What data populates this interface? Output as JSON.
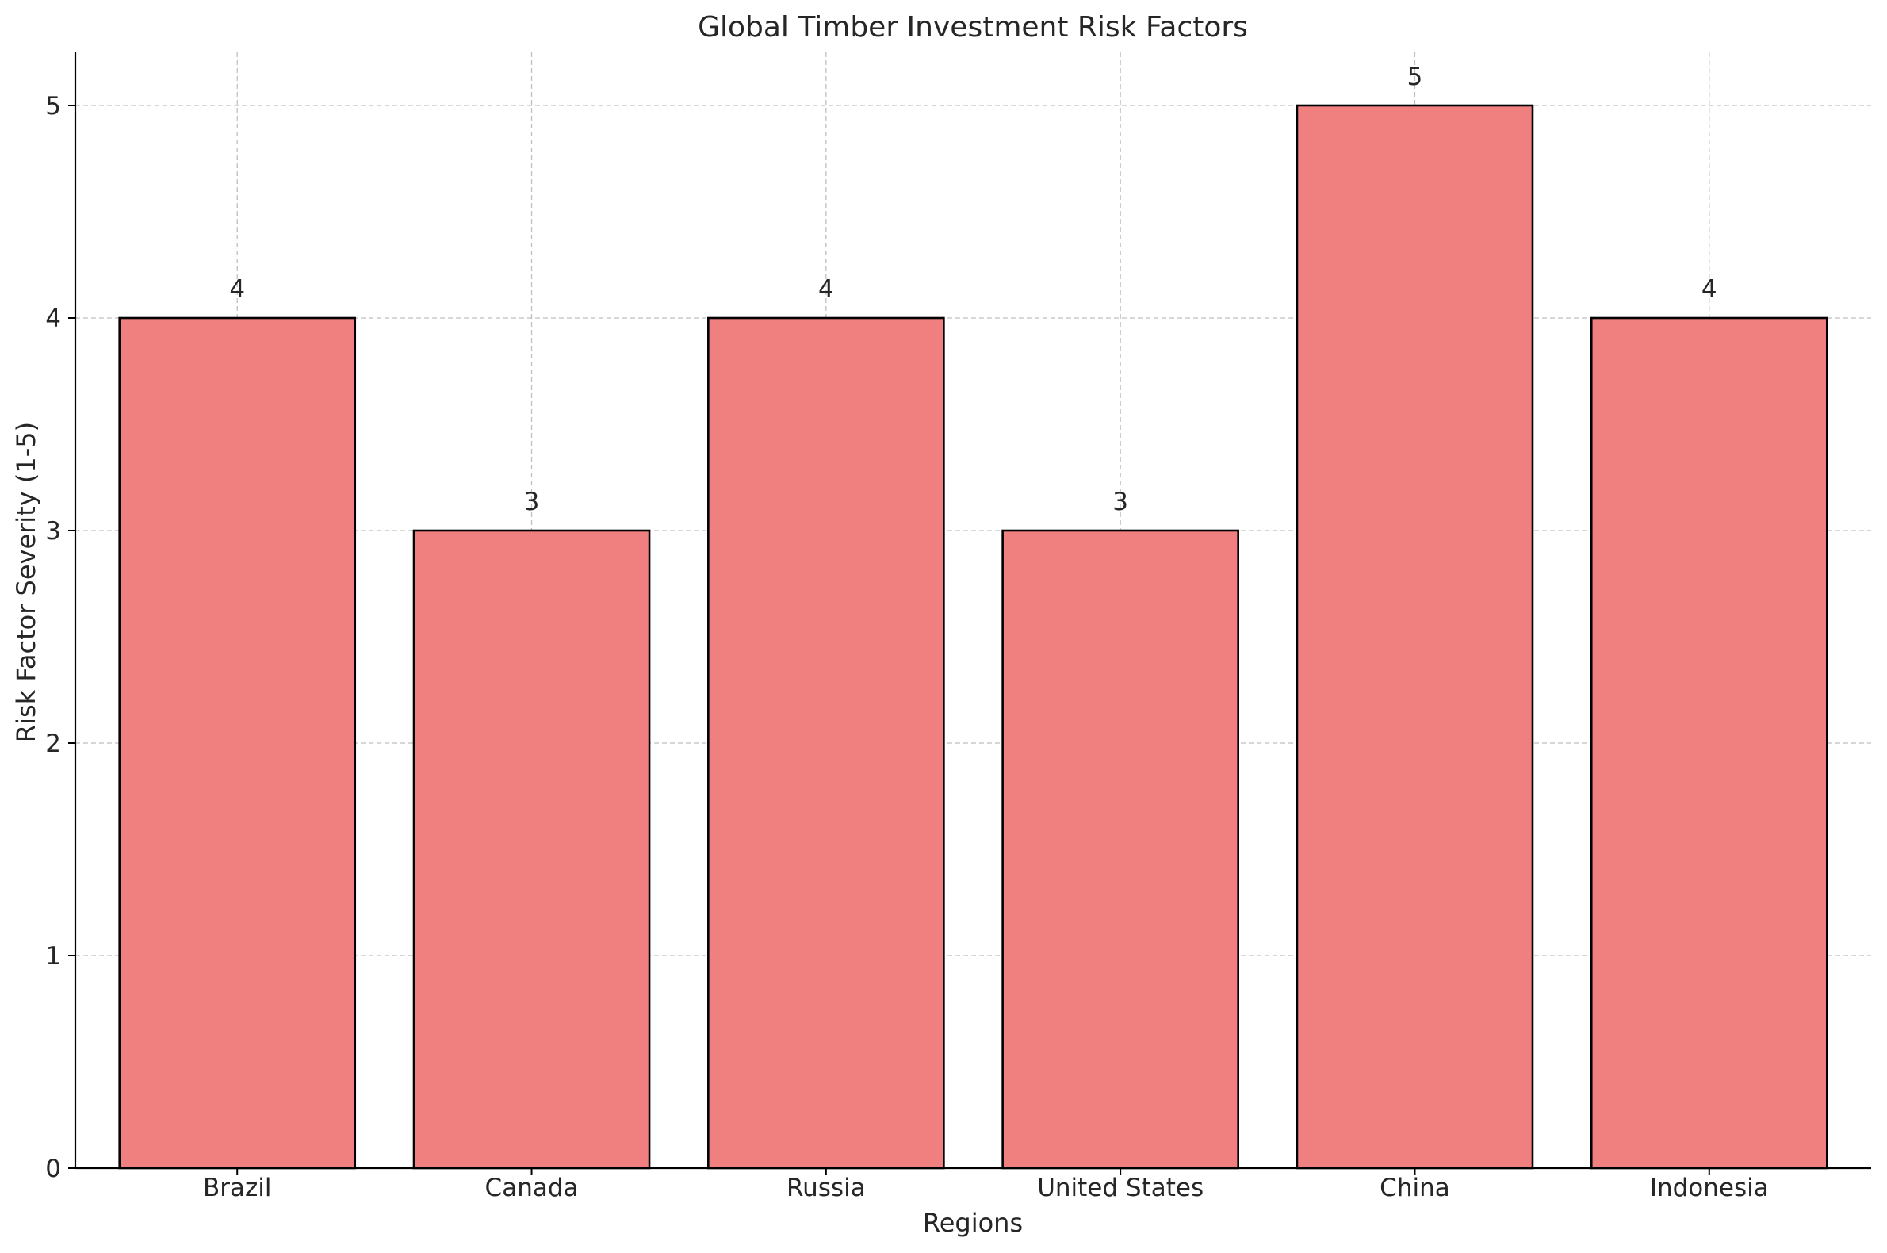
{
  "chart_data": {
    "type": "bar",
    "title": "Global Timber Investment Risk Factors",
    "xlabel": "Regions",
    "ylabel": "Risk Factor Severity (1-5)",
    "categories": [
      "Brazil",
      "Canada",
      "Russia",
      "United States",
      "China",
      "Indonesia"
    ],
    "values": [
      4,
      3,
      4,
      3,
      5,
      4
    ],
    "data_labels": [
      "4",
      "3",
      "4",
      "3",
      "5",
      "4"
    ],
    "ylim": [
      0,
      5.25
    ],
    "yticks": [
      0,
      1,
      2,
      3,
      4,
      5
    ],
    "grid": true,
    "bar_color": "#f08080",
    "bar_edge_color": "#000000",
    "legend": "none"
  }
}
